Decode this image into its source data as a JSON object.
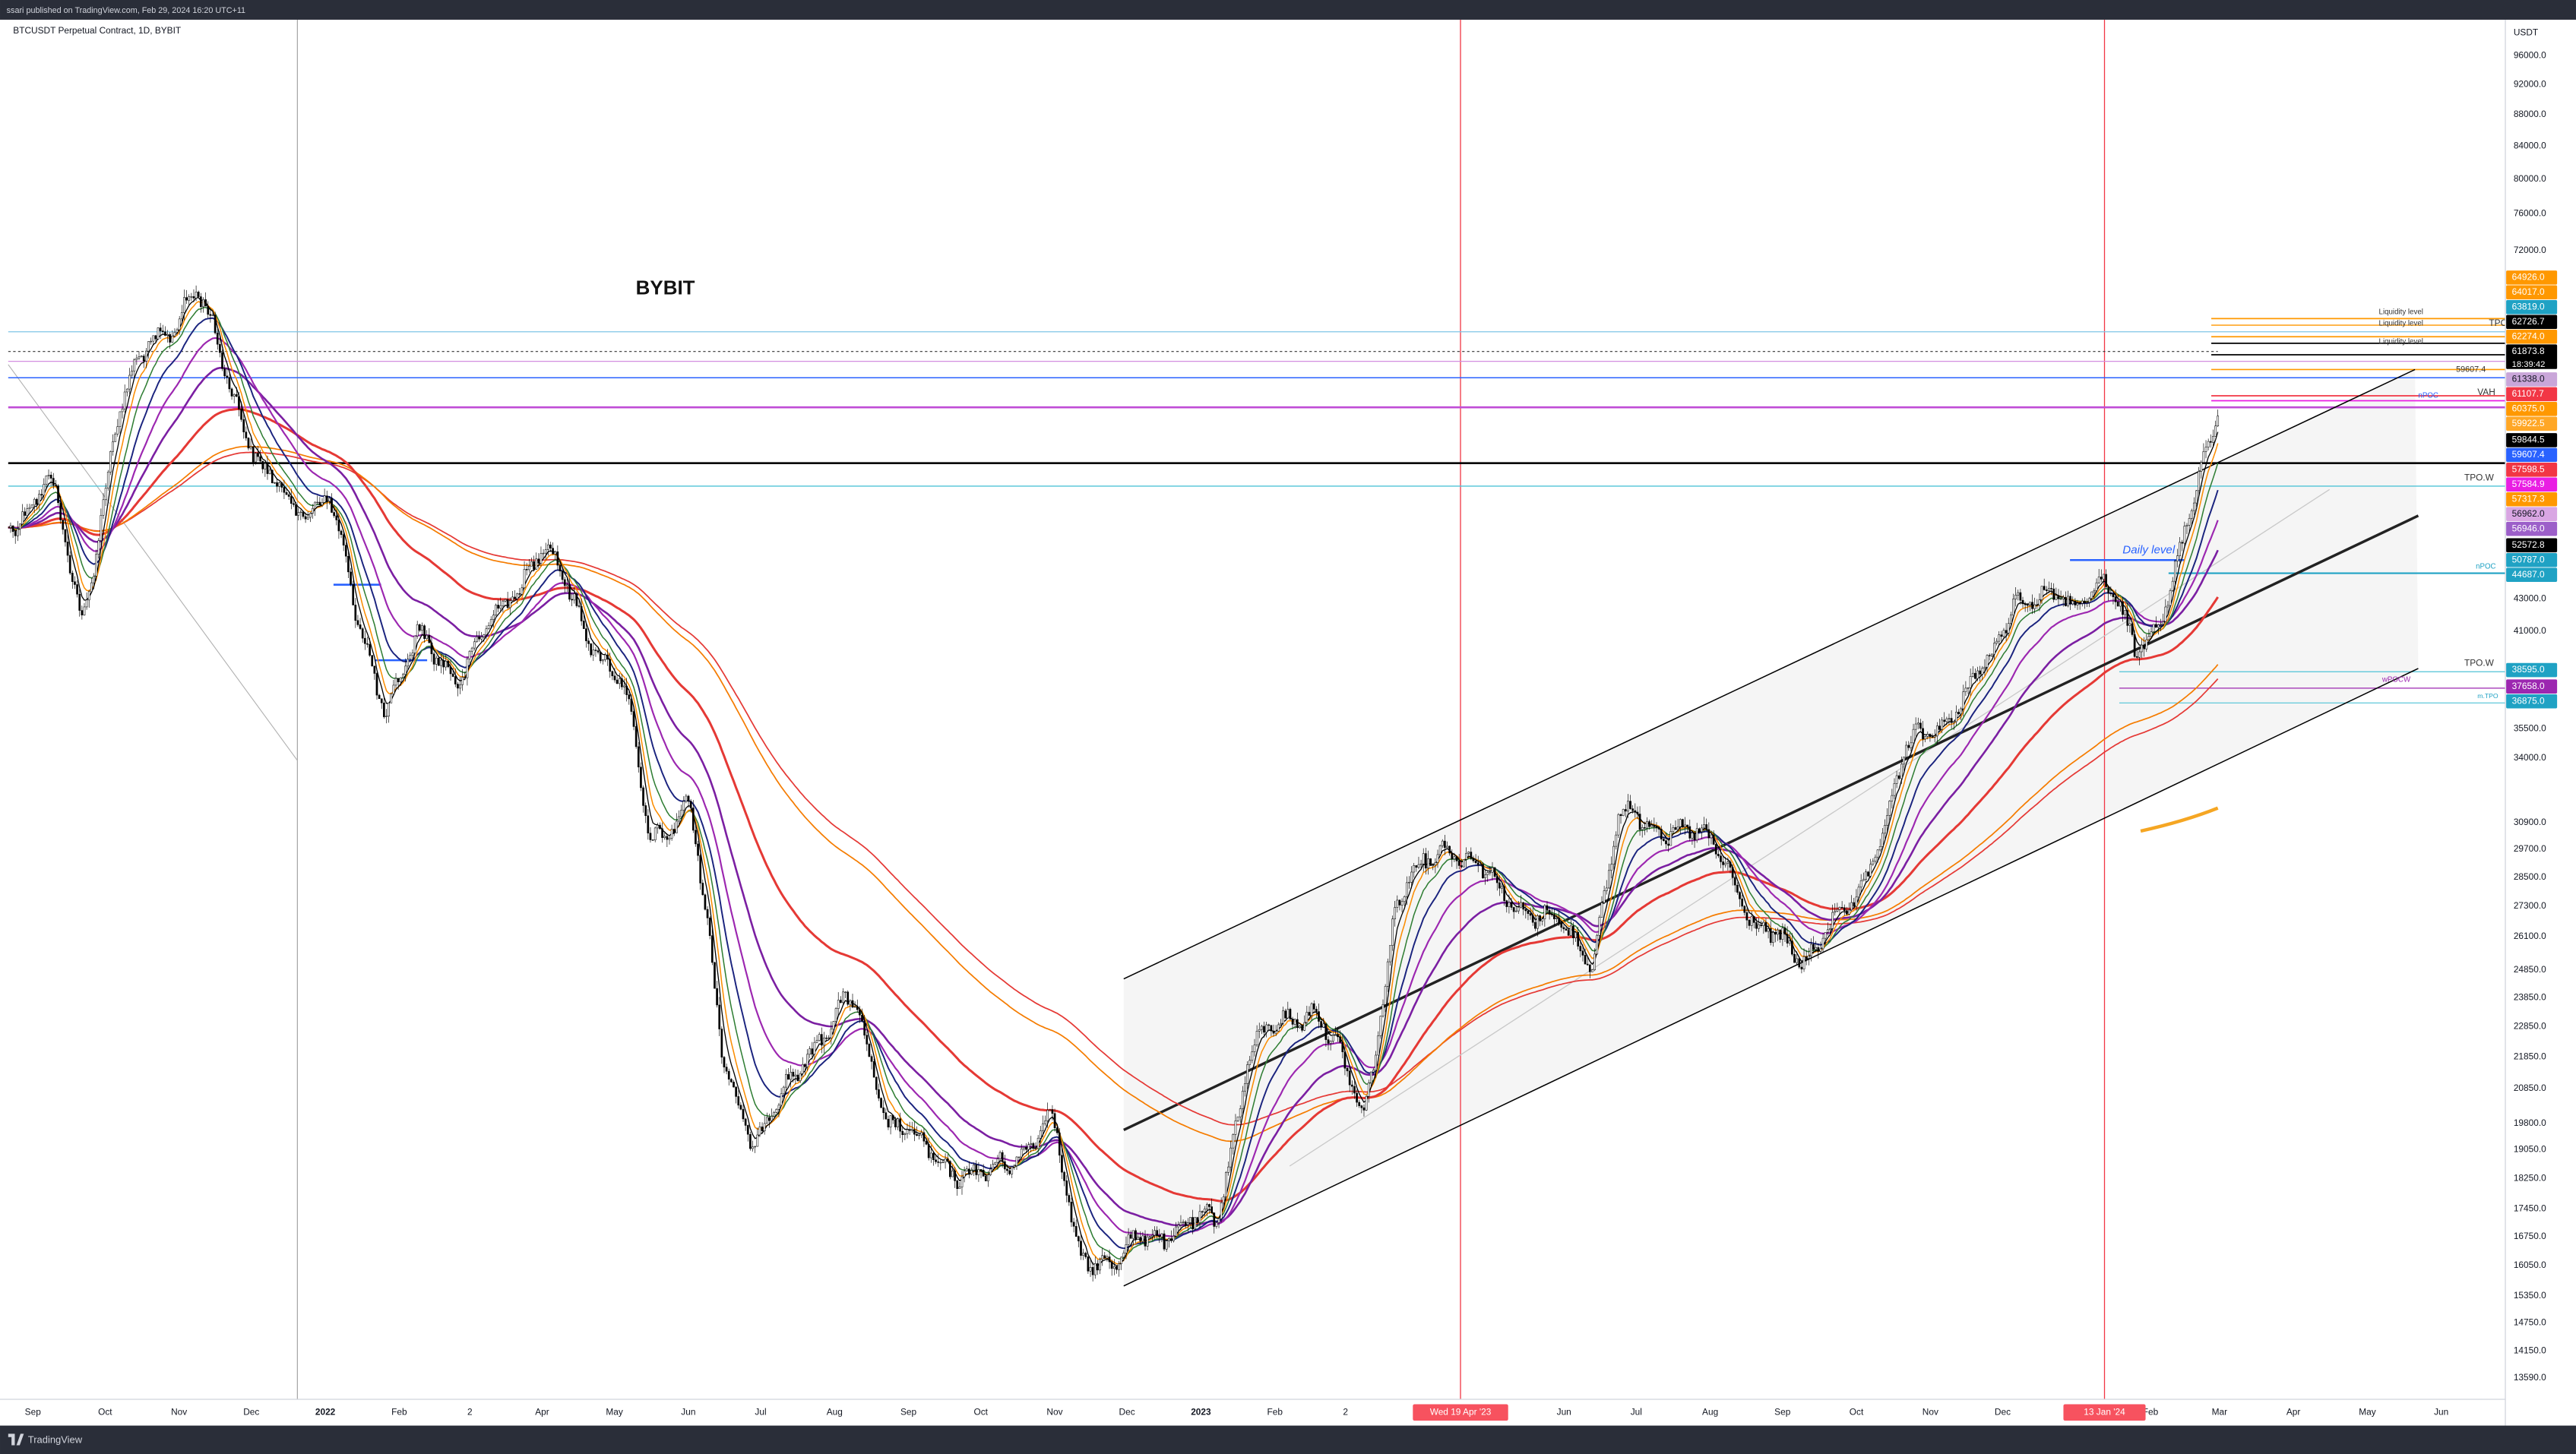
{
  "header": {
    "published": "ssari published on TradingView.com, Feb 29, 2024 16:20 UTC+11",
    "symbol": "BTCUSDT Perpetual Contract, 1D, BYBIT"
  },
  "price_axis": {
    "unit": "USDT",
    "labels": [
      "96000.0",
      "92000.0",
      "88000.0",
      "84000.0",
      "80000.0",
      "76000.0",
      "72000.0",
      "43000.0",
      "41000.0",
      "35500.0",
      "34000.0",
      "30900.0",
      "29700.0",
      "28500.0",
      "27300.0",
      "26100.0",
      "24850.0",
      "23850.0",
      "22850.0",
      "21850.0",
      "20850.0",
      "19800.0",
      "19050.0",
      "18250.0",
      "17450.0",
      "16750.0",
      "16050.0",
      "15350.0",
      "14750.0",
      "14150.0",
      "13590.0"
    ]
  },
  "price_tags": [
    {
      "label": "64926.0",
      "color": "#ff9800"
    },
    {
      "label": "64017.0",
      "color": "#ff9800"
    },
    {
      "label": "63819.0",
      "color": "#1fa2c4"
    },
    {
      "label": "62726.7",
      "color": "#000000"
    },
    {
      "label": "62274.0",
      "color": "#ff9800"
    },
    {
      "label": "61873.8",
      "color": "#000000"
    },
    {
      "label": "61338.0",
      "color": "#c9a6d9"
    },
    {
      "label": "61107.7",
      "color": "#f23645"
    },
    {
      "label": "60375.0",
      "color": "#ff9800"
    },
    {
      "label": "59922.5",
      "color": "#ffa726"
    },
    {
      "label": "59844.5",
      "color": "#000000"
    },
    {
      "label": "59607.4",
      "color": "#2962ff"
    },
    {
      "label": "57598.5",
      "color": "#f23645"
    },
    {
      "label": "57584.9",
      "color": "#e91ee3"
    },
    {
      "label": "57317.3",
      "color": "#ff9800"
    },
    {
      "label": "56962.0",
      "color": "#d9a6e3"
    },
    {
      "label": "56946.0",
      "color": "#9c5fc9"
    },
    {
      "label": "52572.8",
      "color": "#000000"
    },
    {
      "label": "50787.0",
      "color": "#1fa2c4"
    },
    {
      "label": "44687.0",
      "color": "#1fa2c4"
    },
    {
      "label": "38595.0",
      "color": "#1fa2c4"
    },
    {
      "label": "37658.0",
      "color": "#9c27b0"
    },
    {
      "label": "36875.0",
      "color": "#1fa2c4"
    }
  ],
  "countdown": "18:39:42",
  "time_axis": {
    "labels": [
      "Sep",
      "Oct",
      "Nov",
      "Dec",
      "2022",
      "Feb",
      "2",
      "Apr",
      "May",
      "Jun",
      "Jul",
      "Aug",
      "Sep",
      "Oct",
      "Nov",
      "Dec",
      "2023",
      "Feb",
      "2",
      "Jun",
      "Jul",
      "Aug",
      "Sep",
      "Oct",
      "Nov",
      "Dec",
      "Feb",
      "Mar",
      "Apr",
      "May",
      "Jun"
    ],
    "highlights": [
      "Wed 19 Apr '23",
      "13 Jan '24"
    ]
  },
  "annotations": {
    "exchange": "BYBIT",
    "liquidity": [
      "Liquidity level",
      "Liquidity level",
      "Liquidity level"
    ],
    "tpo": [
      "TPO.W",
      "TPO.W",
      "TPO.W"
    ],
    "vah": "VAH",
    "npoc": [
      "nPOC",
      "nPOC"
    ],
    "daily": "Daily level",
    "level_price": "59607.4",
    "wpocw": "wPOCW",
    "mtpo": "m.TPO"
  },
  "footer": {
    "brand": "TradingView"
  }
}
